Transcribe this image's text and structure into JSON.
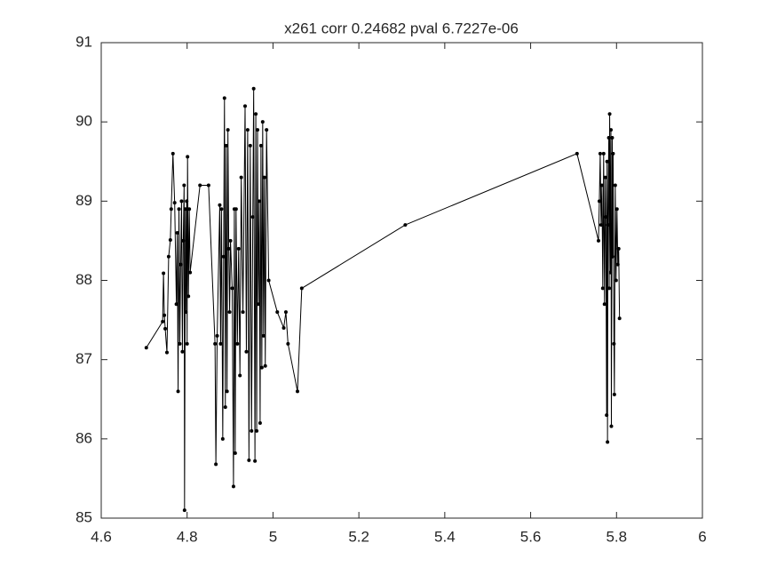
{
  "chart_data": {
    "type": "line",
    "title": "x261 corr 0.24682 pval 6.7227e-06",
    "x": [
      4.705,
      4.743,
      4.745,
      4.747,
      4.749,
      4.753,
      4.757,
      4.761,
      4.763,
      4.767,
      4.771,
      4.775,
      4.777,
      4.779,
      4.781,
      4.783,
      4.785,
      4.787,
      4.789,
      4.791,
      4.793,
      4.794,
      4.796,
      4.797,
      4.799,
      4.8,
      4.801,
      4.803,
      4.805,
      4.807,
      4.83,
      4.85,
      4.865,
      4.867,
      4.87,
      4.876,
      4.878,
      4.88,
      4.883,
      4.885,
      4.887,
      4.889,
      4.891,
      4.893,
      4.895,
      4.897,
      4.899,
      4.901,
      4.905,
      4.908,
      4.91,
      4.912,
      4.914,
      4.917,
      4.92,
      4.923,
      4.926,
      4.93,
      4.935,
      4.938,
      4.941,
      4.944,
      4.947,
      4.95,
      4.953,
      4.955,
      4.958,
      4.96,
      4.962,
      4.964,
      4.966,
      4.968,
      4.97,
      4.972,
      4.974,
      4.976,
      4.978,
      4.98,
      4.982,
      4.985,
      4.99,
      5.01,
      5.025,
      5.03,
      5.035,
      5.057,
      5.067,
      5.308,
      5.708,
      5.758,
      5.76,
      5.762,
      5.764,
      5.766,
      5.768,
      5.77,
      5.772,
      5.774,
      5.775,
      5.777,
      5.778,
      5.779,
      5.78,
      5.782,
      5.783,
      5.784,
      5.786,
      5.787,
      5.788,
      5.79,
      5.791,
      5.792,
      5.794,
      5.795,
      5.797,
      5.799,
      5.801,
      5.803,
      5.805,
      5.807
    ],
    "series": [
      {
        "color": "#000000",
        "values": [
          87.15,
          87.48,
          88.09,
          87.56,
          87.39,
          87.09,
          88.3,
          88.51,
          88.9,
          89.6,
          88.98,
          87.7,
          88.6,
          86.6,
          88.9,
          87.2,
          88.2,
          89.0,
          87.1,
          88.5,
          89.2,
          85.1,
          88.9,
          87.6,
          89.0,
          87.2,
          89.56,
          87.8,
          88.9,
          88.1,
          89.2,
          89.2,
          87.2,
          85.68,
          87.3,
          88.95,
          87.2,
          88.9,
          86.0,
          88.3,
          90.3,
          86.4,
          89.7,
          86.6,
          89.9,
          88.4,
          87.6,
          88.5,
          87.9,
          85.4,
          88.9,
          85.82,
          88.9,
          87.2,
          88.4,
          86.8,
          89.3,
          87.6,
          90.2,
          87.1,
          89.9,
          85.73,
          89.7,
          86.1,
          88.8,
          90.42,
          85.72,
          90.1,
          86.1,
          89.9,
          87.7,
          89.0,
          86.2,
          89.7,
          86.9,
          90.0,
          87.3,
          89.3,
          86.92,
          89.9,
          88.0,
          87.6,
          87.4,
          87.6,
          87.2,
          86.6,
          87.9,
          88.7,
          89.6,
          88.5,
          89.0,
          89.6,
          88.7,
          89.2,
          87.9,
          89.6,
          87.7,
          89.3,
          88.8,
          86.3,
          89.5,
          85.96,
          88.7,
          89.8,
          87.9,
          90.1,
          88.1,
          89.9,
          86.16,
          89.8,
          88.3,
          89.6,
          87.2,
          86.56,
          89.2,
          88.0,
          88.9,
          88.2,
          88.4,
          87.52
        ]
      }
    ],
    "xlim": [
      4.6,
      6
    ],
    "xticks": [
      4.6,
      4.8,
      5,
      5.2,
      5.4,
      5.6,
      5.8,
      6
    ],
    "ylim": [
      85,
      91
    ],
    "yticks": [
      85,
      86,
      87,
      88,
      89,
      90,
      91
    ]
  }
}
